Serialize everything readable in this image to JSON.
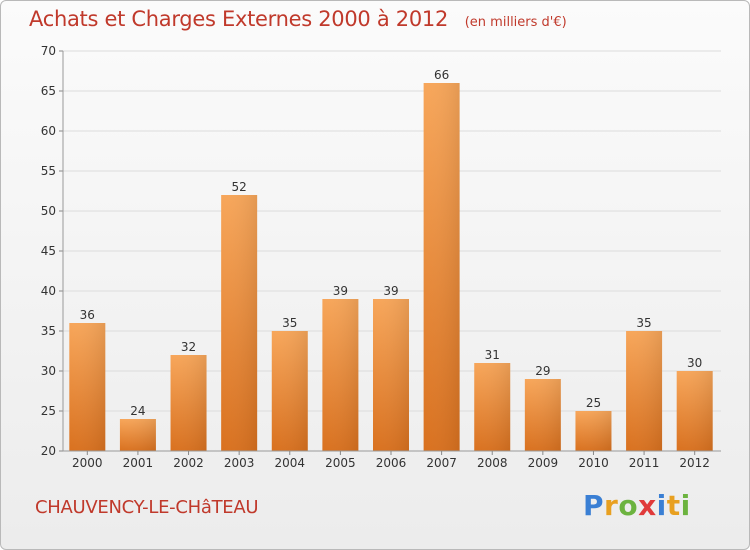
{
  "header": {
    "title": "Achats et Charges Externes 2000 à 2012",
    "subtitle": "(en milliers d'€)"
  },
  "footer": {
    "commune": "CHAUVENCY-LE-CHâTEAU",
    "logo_letters": [
      "P",
      "r",
      "o",
      "x",
      "i",
      "t",
      "i"
    ],
    "logo_colors": [
      "#3a7fd4",
      "#e8a020",
      "#6cb33f",
      "#e03a3a",
      "#3a7fd4",
      "#e8a020",
      "#6cb33f"
    ]
  },
  "colors": {
    "bar_light": "#f7a65a",
    "bar_dark": "#d9711f",
    "title": "#c0392b",
    "grid": "#dcdcdc",
    "axis_text": "#333333"
  },
  "chart_data": {
    "type": "bar",
    "title": "Achats et Charges Externes 2000 à 2012",
    "subtitle": "(en milliers d'€)",
    "categories": [
      "2000",
      "2001",
      "2002",
      "2003",
      "2004",
      "2005",
      "2006",
      "2007",
      "2008",
      "2009",
      "2010",
      "2011",
      "2012"
    ],
    "values": [
      36,
      24,
      32,
      52,
      35,
      39,
      39,
      66,
      31,
      29,
      25,
      35,
      30
    ],
    "ylim": [
      20,
      70
    ],
    "yticks": [
      20,
      25,
      30,
      35,
      40,
      45,
      50,
      55,
      60,
      65,
      70
    ],
    "grid": true,
    "xlabel": "",
    "ylabel": ""
  }
}
